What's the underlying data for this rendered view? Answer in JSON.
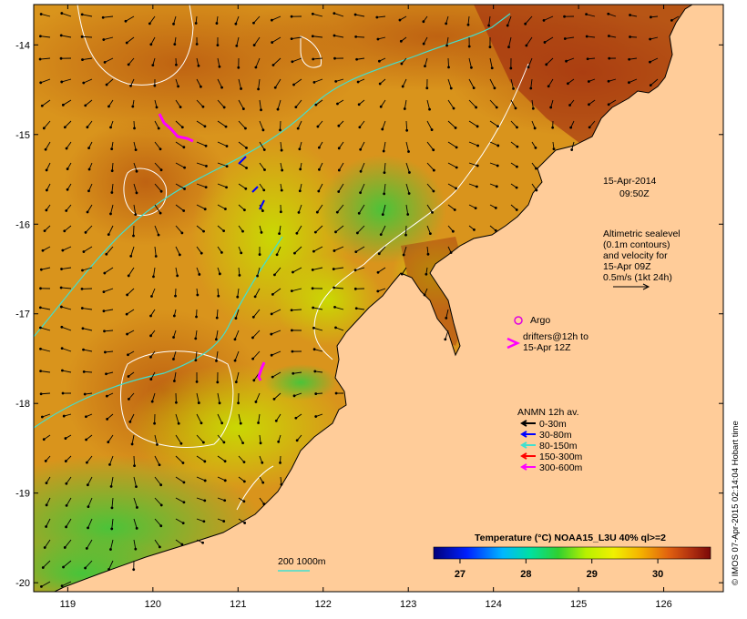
{
  "annotations": {
    "date": "15-Apr-2014",
    "time": "09:50Z",
    "altimetry": [
      "Altimetric sealevel",
      "(0.1m contours)",
      "and velocity for",
      "15-Apr 09Z",
      "0.5m/s (1kt 24h)"
    ]
  },
  "legend": {
    "argo": "Argo",
    "drifters": [
      "drifters@12h to",
      "15-Apr 12Z"
    ],
    "anmn_title": "ANMN 12h av.",
    "anmn_items": [
      {
        "label": "0-30m",
        "color": "#000000"
      },
      {
        "label": "30-80m",
        "color": "#0000ff"
      },
      {
        "label": "80-150m",
        "color": "#40e0d0"
      },
      {
        "label": "150-300m",
        "color": "#ff0000"
      },
      {
        "label": "300-600m",
        "color": "#ff00ff"
      }
    ]
  },
  "colorbar": {
    "title": "Temperature (°C) NOAA15_L3U 40% ql>=2",
    "min": 26.6,
    "max": 30.8,
    "ticks": [
      "27",
      "28",
      "29",
      "30"
    ]
  },
  "depth_scale": {
    "label": "200  1000m"
  },
  "credit": "© IMOS 07-Apr-2015 02:14:04 Hobart time",
  "axes": {
    "longitude": {
      "min": 118.6,
      "max": 126.7,
      "ticks": [
        "119",
        "120",
        "121",
        "122",
        "123",
        "124",
        "125",
        "126"
      ]
    },
    "latitude": {
      "min": -20.1,
      "max": -13.55,
      "ticks": [
        "-14",
        "-15",
        "-16",
        "-17",
        "-18",
        "-19",
        "-20"
      ]
    }
  },
  "colors": {
    "land": "#ffcc99",
    "contours": "#ffffff",
    "isobath": "#40e0d0",
    "drifter": "#ff00ff",
    "argo": "#e000e0"
  }
}
